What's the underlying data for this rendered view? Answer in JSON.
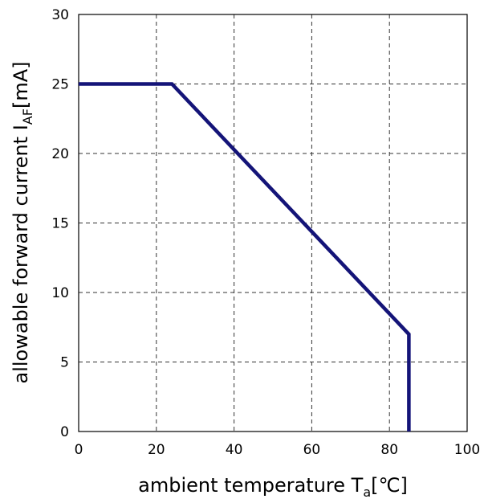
{
  "chart_data": {
    "type": "line",
    "xlabel_main": "ambient temperature T",
    "xlabel_sub": "a",
    "xlabel_unit": "[℃]",
    "ylabel_main": "allowable forward current I",
    "ylabel_sub": "AF",
    "ylabel_unit": "[mA]",
    "xlim": [
      0,
      100
    ],
    "ylim": [
      0,
      30
    ],
    "xticks": [
      "0",
      "20",
      "40",
      "60",
      "80",
      "100"
    ],
    "yticks": [
      "0",
      "5",
      "10",
      "15",
      "20",
      "25",
      "30"
    ],
    "grid": true,
    "series": [
      {
        "color": "#141478",
        "x": [
          0,
          24,
          85,
          85
        ],
        "y": [
          25,
          25,
          7,
          0
        ]
      }
    ]
  }
}
